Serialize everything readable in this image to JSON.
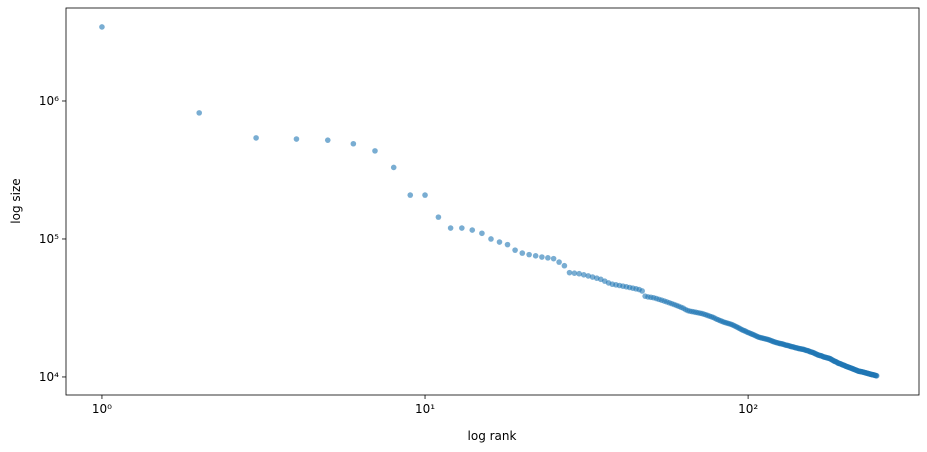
{
  "chart_data": {
    "type": "scatter",
    "xlabel": "log rank",
    "ylabel": "log size",
    "color": "#1f77b4",
    "alpha": 0.6,
    "xscale": "log",
    "yscale": "log",
    "grid": false,
    "xlim": [
      0.774,
      338
    ],
    "ylim": [
      7400,
      4720000
    ],
    "xticks": [
      {
        "value": 1,
        "label": "10⁰"
      },
      {
        "value": 10,
        "label": "10¹"
      },
      {
        "value": 100,
        "label": "10²"
      }
    ],
    "yticks": [
      {
        "value": 10000,
        "label": "10⁴"
      },
      {
        "value": 100000,
        "label": "10⁵"
      },
      {
        "value": 1000000,
        "label": "10⁶"
      }
    ],
    "x": [
      1,
      2,
      3,
      4,
      5,
      6,
      7,
      8,
      9,
      10,
      11,
      12,
      13,
      14,
      15,
      16,
      17,
      18,
      19,
      20,
      21,
      22,
      23,
      24,
      25,
      26,
      27,
      28,
      29,
      30,
      31,
      32,
      33,
      34,
      35,
      36,
      37,
      38,
      39,
      40,
      41,
      42,
      43,
      44,
      45,
      46,
      47,
      48,
      49,
      50,
      51,
      52,
      53,
      54,
      55,
      56,
      57,
      58,
      59,
      60,
      61,
      62,
      63,
      64,
      65,
      66,
      67,
      68,
      69,
      70,
      71,
      72,
      73,
      74,
      75,
      76,
      77,
      78,
      79,
      80,
      81,
      82,
      83,
      84,
      85,
      86,
      87,
      88,
      89,
      90,
      91,
      92,
      93,
      94,
      95,
      96,
      97,
      98,
      99,
      100,
      101,
      102,
      103,
      104,
      105,
      106,
      107,
      108,
      109,
      110,
      111,
      112,
      113,
      114,
      115,
      116,
      117,
      118,
      119,
      120,
      121,
      122,
      123,
      124,
      125,
      126,
      127,
      128,
      129,
      130,
      131,
      132,
      133,
      134,
      135,
      136,
      137,
      138,
      139,
      140,
      141,
      142,
      143,
      144,
      145,
      146,
      147,
      148,
      149,
      150,
      151,
      152,
      153,
      154,
      155,
      156,
      157,
      158,
      159,
      160,
      161,
      162,
      163,
      164,
      165,
      166,
      167,
      168,
      169,
      170,
      171,
      172,
      173,
      174,
      175,
      176,
      177,
      178,
      179,
      180,
      181,
      182,
      183,
      184,
      185,
      186,
      187,
      188,
      189,
      190,
      191,
      192,
      193,
      194,
      195,
      196,
      197,
      198,
      199,
      200,
      201,
      202,
      203,
      204,
      205,
      206,
      207,
      208,
      209,
      210,
      211,
      212,
      213,
      214,
      215,
      216,
      217,
      218,
      219,
      220,
      221,
      222,
      223,
      224,
      225,
      226,
      227,
      228,
      229,
      230,
      231,
      232,
      233,
      234,
      235,
      236,
      237,
      238,
      239,
      240,
      241,
      242,
      243,
      244,
      245,
      246,
      247,
      248,
      249,
      250
    ],
    "values": [
      3440000,
      820000,
      540000,
      530000,
      520000,
      490000,
      435000,
      330000,
      208000,
      208000,
      144000,
      120000,
      120000,
      116000,
      110000,
      100000,
      95000,
      91000,
      83000,
      79000,
      77000,
      75500,
      74000,
      73000,
      72000,
      68000,
      64000,
      57000,
      56500,
      56000,
      55000,
      54000,
      53000,
      52000,
      51000,
      49500,
      48000,
      47000,
      46500,
      46000,
      45500,
      45000,
      44500,
      44000,
      43500,
      43000,
      42000,
      38500,
      38000,
      37800,
      37500,
      37000,
      36500,
      36000,
      35500,
      35000,
      34500,
      34000,
      33500,
      33000,
      32500,
      32000,
      31500,
      30800,
      30300,
      30000,
      29800,
      29600,
      29400,
      29200,
      29000,
      28800,
      28500,
      28200,
      27900,
      27600,
      27300,
      27000,
      26600,
      26200,
      25900,
      25600,
      25300,
      25000,
      24800,
      24600,
      24400,
      24200,
      24000,
      23700,
      23400,
      23100,
      22800,
      22500,
      22200,
      21900,
      21700,
      21500,
      21200,
      21000,
      20800,
      20600,
      20400,
      20200,
      20000,
      19800,
      19600,
      19400,
      19300,
      19200,
      19100,
      19000,
      18900,
      18800,
      18700,
      18600,
      18450,
      18300,
      18150,
      18000,
      17900,
      17800,
      17700,
      17600,
      17500,
      17450,
      17400,
      17300,
      17200,
      17100,
      17000,
      16950,
      16900,
      16800,
      16700,
      16600,
      16550,
      16500,
      16400,
      16300,
      16250,
      16200,
      16100,
      16050,
      16000,
      15950,
      15900,
      15850,
      15800,
      15700,
      15600,
      15550,
      15500,
      15400,
      15300,
      15200,
      15150,
      15100,
      15000,
      14900,
      14800,
      14700,
      14600,
      14500,
      14400,
      14350,
      14300,
      14250,
      14200,
      14100,
      14000,
      13950,
      13900,
      13850,
      13800,
      13750,
      13700,
      13650,
      13600,
      13500,
      13400,
      13300,
      13200,
      13100,
      13000,
      12950,
      12900,
      12800,
      12700,
      12600,
      12550,
      12500,
      12450,
      12400,
      12300,
      12250,
      12200,
      12150,
      12100,
      12000,
      11950,
      11900,
      11850,
      11800,
      11750,
      11700,
      11650,
      11600,
      11550,
      11500,
      11450,
      11400,
      11350,
      11300,
      11250,
      11200,
      11150,
      11100,
      11050,
      11000,
      10980,
      10960,
      10940,
      10920,
      10900,
      10870,
      10840,
      10810,
      10780,
      10750,
      10720,
      10690,
      10660,
      10630,
      10600,
      10570,
      10540,
      10510,
      10480,
      10450,
      10420,
      10400,
      10380,
      10360,
      10340,
      10310,
      10280,
      10250,
      10220,
      10200
    ]
  }
}
